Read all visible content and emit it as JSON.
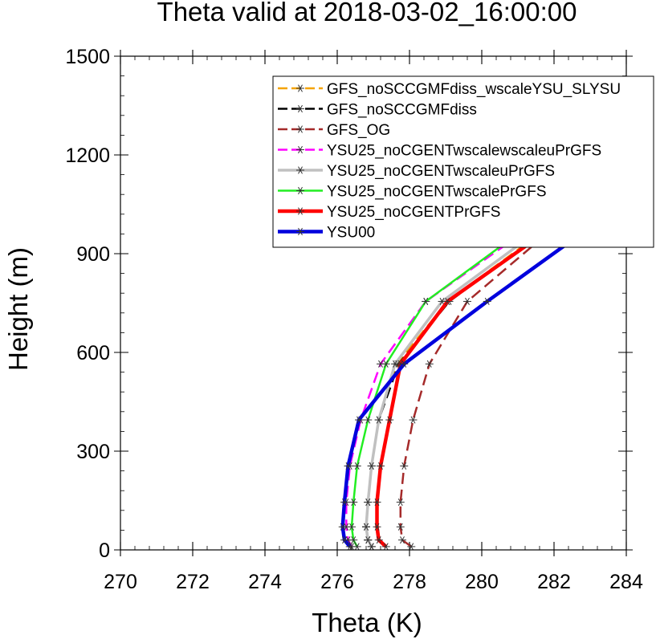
{
  "chart_data": {
    "type": "line",
    "title": "Theta valid at 2018-03-02_16:00:00",
    "xlabel": "Theta (K)",
    "ylabel": "Height (m)",
    "xlim": [
      270,
      284
    ],
    "ylim": [
      0,
      1500
    ],
    "xticks": [
      "270",
      "272",
      "274",
      "276",
      "278",
      "280",
      "282",
      "284"
    ],
    "yticks": [
      "0",
      "300",
      "600",
      "900",
      "1200",
      "1500"
    ],
    "grid": false,
    "legend_position": "top-right",
    "heights": [
      10,
      30,
      70,
      145,
      255,
      395,
      565,
      755,
      965,
      1200
    ],
    "series": [
      {
        "name": "GFS_noSCCGMFdiss_wscaleYSU_SLYSU",
        "color": "#f5a300",
        "dash": "dash",
        "width": 2.5,
        "x": [
          276.95,
          276.85,
          276.8,
          276.85,
          276.95,
          277.15,
          277.65,
          279.05,
          281.65,
          284.0
        ]
      },
      {
        "name": "GFS_noSCCGMFdiss",
        "color": "#000000",
        "dash": "dash",
        "width": 2.5,
        "x": [
          276.95,
          276.85,
          276.8,
          276.85,
          276.95,
          277.15,
          277.7,
          279.1,
          281.7,
          284.0
        ]
      },
      {
        "name": "GFS_OG",
        "color": "#a52a2a",
        "dash": "dash",
        "width": 2.5,
        "x": [
          278.05,
          277.8,
          277.75,
          277.75,
          277.85,
          278.1,
          278.55,
          279.6,
          281.85,
          284.0
        ]
      },
      {
        "name": "YSU25_noCGENTwscalewscaleuPrGFS",
        "color": "#ff00ff",
        "dash": "dash",
        "width": 2.5,
        "x": [
          276.4,
          276.3,
          276.25,
          276.25,
          276.35,
          276.65,
          277.2,
          278.45,
          281.15,
          284.0
        ]
      },
      {
        "name": "YSU25_noCGENTwscaleuPrGFS",
        "color": "#c0c0c0",
        "dash": "solid",
        "width": 3.5,
        "x": [
          276.95,
          276.85,
          276.8,
          276.85,
          276.95,
          277.15,
          277.6,
          278.9,
          281.5,
          284.0
        ]
      },
      {
        "name": "YSU25_noCGENTwscalePrGFS",
        "color": "#22ee22",
        "dash": "solid",
        "width": 2.5,
        "x": [
          276.55,
          276.45,
          276.4,
          276.45,
          276.55,
          276.85,
          277.35,
          278.45,
          281.05,
          284.0
        ]
      },
      {
        "name": "YSU25_noCGENTPrGFS",
        "color": "#ff0000",
        "dash": "solid",
        "width": 4.5,
        "x": [
          277.35,
          277.15,
          277.1,
          277.1,
          277.2,
          277.45,
          277.75,
          279.05,
          281.75,
          284.0
        ]
      },
      {
        "name": "YSU00",
        "color": "#0000dd",
        "dash": "solid",
        "width": 4.5,
        "x": [
          276.35,
          276.2,
          276.15,
          276.2,
          276.3,
          276.6,
          277.85,
          280.15,
          282.8,
          284.0
        ]
      }
    ]
  }
}
